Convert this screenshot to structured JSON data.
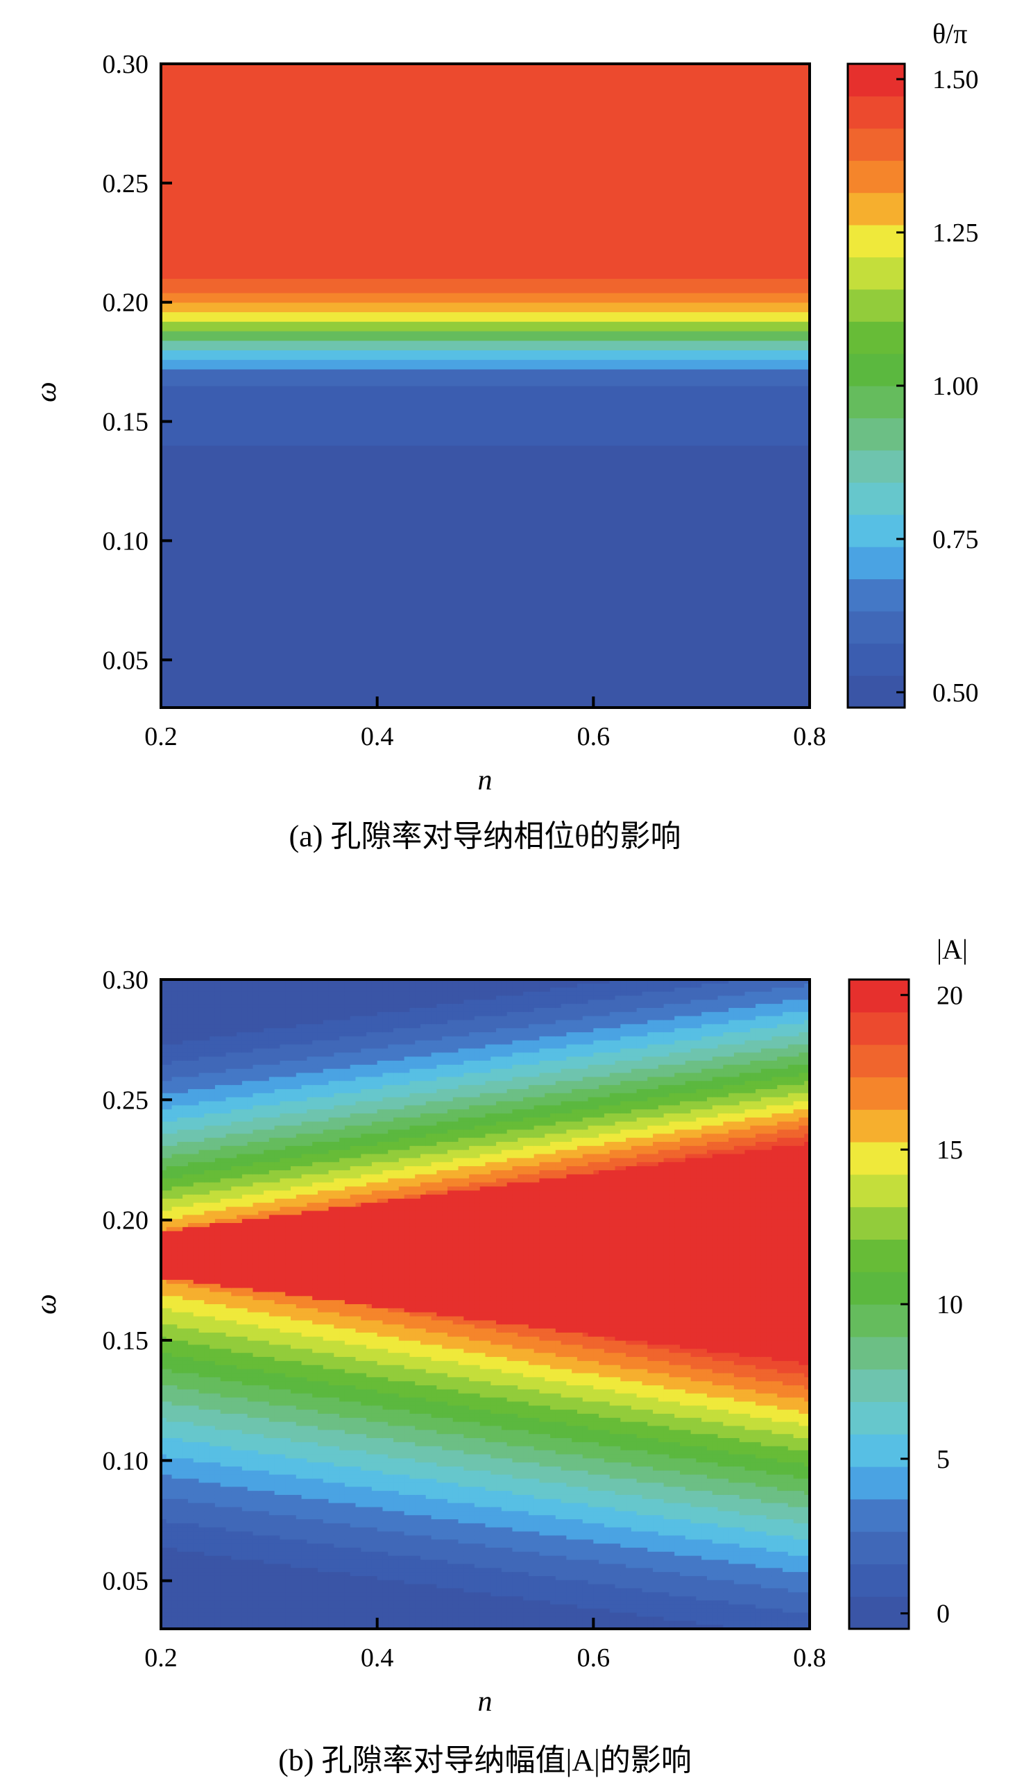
{
  "palette": [
    "#3a55a6",
    "#3b5db0",
    "#4068b8",
    "#4478c6",
    "#4aa3e3",
    "#57bfe4",
    "#66c7cc",
    "#6ec4ae",
    "#6cbf85",
    "#65bc5d",
    "#5bb83f",
    "#67bc37",
    "#92cc3b",
    "#c4de3b",
    "#efe93b",
    "#f6af2e",
    "#f5852b",
    "#f0652d",
    "#ec4a2e",
    "#e6302d"
  ],
  "chart_data": [
    {
      "id": "a",
      "type": "heatmap",
      "caption": "(a) 孔隙率对导纳相位θ的影响",
      "xlabel": "n",
      "ylabel": "ω",
      "xlim": [
        0.2,
        0.8
      ],
      "ylim": [
        0.03,
        0.3
      ],
      "xticks": [
        "0.2",
        "0.4",
        "0.6",
        "0.8"
      ],
      "xtick_values": [
        0.2,
        0.4,
        0.6,
        0.8
      ],
      "yticks": [
        "0.05",
        "0.10",
        "0.15",
        "0.20",
        "0.25",
        "0.30"
      ],
      "ytick_values": [
        0.05,
        0.1,
        0.15,
        0.2,
        0.25,
        0.3
      ],
      "colorbar": {
        "title": "θ/π",
        "range": [
          0.475,
          1.525
        ],
        "ticks": [
          "0.50",
          "0.75",
          "1.00",
          "1.25",
          "1.50"
        ],
        "tick_values": [
          0.5,
          0.75,
          1.0,
          1.25,
          1.5
        ]
      },
      "bands": [
        {
          "y0": 0.03,
          "y1": 0.14,
          "value": 0.5
        },
        {
          "y0": 0.14,
          "y1": 0.165,
          "value": 0.56
        },
        {
          "y0": 0.165,
          "y1": 0.172,
          "value": 0.62
        },
        {
          "y0": 0.172,
          "y1": 0.176,
          "value": 0.7
        },
        {
          "y0": 0.176,
          "y1": 0.18,
          "value": 0.78
        },
        {
          "y0": 0.18,
          "y1": 0.184,
          "value": 0.86
        },
        {
          "y0": 0.184,
          "y1": 0.188,
          "value": 0.98
        },
        {
          "y0": 0.188,
          "y1": 0.192,
          "value": 1.12
        },
        {
          "y0": 0.192,
          "y1": 0.196,
          "value": 1.22
        },
        {
          "y0": 0.196,
          "y1": 0.2,
          "value": 1.27
        },
        {
          "y0": 0.2,
          "y1": 0.204,
          "value": 1.32
        },
        {
          "y0": 0.204,
          "y1": 0.21,
          "value": 1.38
        },
        {
          "y0": 0.21,
          "y1": 0.3,
          "value": 1.45
        }
      ]
    },
    {
      "id": "b",
      "type": "heatmap",
      "caption": "(b) 孔隙率对导纳幅值|A|的影响",
      "xlabel": "n",
      "ylabel": "ω",
      "xlim": [
        0.2,
        0.8
      ],
      "ylim": [
        0.03,
        0.3
      ],
      "xticks": [
        "0.2",
        "0.4",
        "0.6",
        "0.8"
      ],
      "xtick_values": [
        0.2,
        0.4,
        0.6,
        0.8
      ],
      "yticks": [
        "0.05",
        "0.10",
        "0.15",
        "0.20",
        "0.25",
        "0.30"
      ],
      "yticks_values": [],
      "ytick_values": [
        0.05,
        0.1,
        0.15,
        0.2,
        0.25,
        0.3
      ],
      "colorbar": {
        "title": "|A|",
        "range": [
          -0.5,
          20.5
        ],
        "ticks": [
          "0",
          "5",
          "10",
          "15",
          "20"
        ],
        "tick_values": [
          0,
          5,
          10,
          15,
          20
        ]
      },
      "ridge": {
        "upper": [
          {
            "n": 0.2,
            "omega": 0.195
          },
          {
            "n": 0.8,
            "omega": 0.232
          }
        ],
        "lower": [
          {
            "n": 0.2,
            "omega": 0.176
          },
          {
            "n": 0.8,
            "omega": 0.14
          }
        ],
        "peak_value": 20
      }
    }
  ]
}
